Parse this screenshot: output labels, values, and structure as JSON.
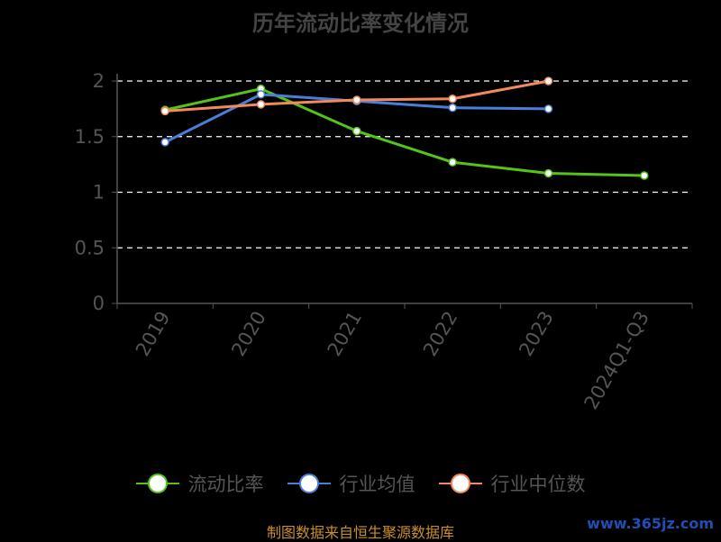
{
  "chart_data": {
    "type": "line",
    "title": "历年流动比率变化情况",
    "categories": [
      "2019",
      "2020",
      "2021",
      "2022",
      "2023",
      "2024Q1-Q3"
    ],
    "ylim": [
      0,
      2
    ],
    "yticks": [
      0,
      0.5,
      1,
      1.5,
      2
    ],
    "ytick_labels": [
      "0",
      "0.5",
      "1",
      "1.5",
      "2"
    ],
    "grid": true,
    "legend_position": "bottom",
    "series": [
      {
        "name": "流动比率",
        "color": "#52c41a",
        "values": [
          1.74,
          1.93,
          1.55,
          1.27,
          1.17,
          1.15
        ]
      },
      {
        "name": "行业均值",
        "color": "#4a7fd9",
        "values": [
          1.45,
          1.88,
          1.82,
          1.76,
          1.75,
          null
        ]
      },
      {
        "name": "行业中位数",
        "color": "#f28a5a",
        "values": [
          1.73,
          1.79,
          1.83,
          1.84,
          2.0,
          null
        ]
      }
    ]
  },
  "footer": "制图数据来自恒生聚源数据库",
  "watermark": "www.365jz.com"
}
